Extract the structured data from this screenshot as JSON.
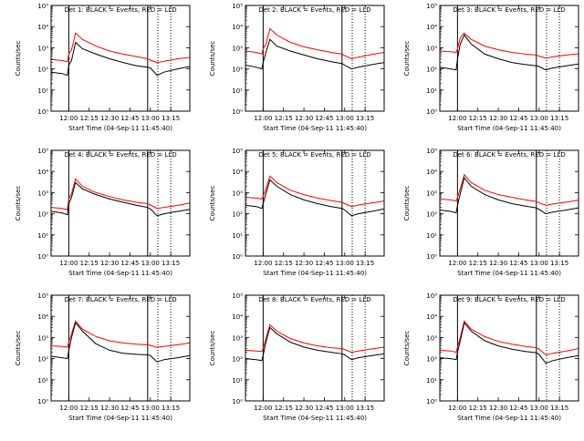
{
  "colors": {
    "background": "#ffffff",
    "axes": "#000000",
    "events": "#000000",
    "lld": "#ff0000"
  },
  "chart_data": [
    {
      "type": "line",
      "title": "Det 1: BLACK = Events, RED = LLD",
      "xlabel": "Start Time (04-Sep-11 11:45:40)",
      "ylabel": "Counts/sec",
      "yscale": "log",
      "ylim": [
        1,
        100000
      ],
      "ytick_labels": [
        "10⁰",
        "10¹",
        "10²",
        "10³",
        "10⁴",
        "10⁵"
      ],
      "xtick_labels": [
        "12:00",
        "12:15",
        "12:30",
        "12:45",
        "13:00",
        "13:15"
      ],
      "xticks_minutes": [
        0,
        15,
        30,
        45,
        60,
        75
      ],
      "xlim_minutes": [
        -13,
        89
      ],
      "vlines_solid_minutes": [
        0,
        58
      ],
      "vlines_dotted_minutes": [
        65.5,
        75
      ],
      "series": [
        {
          "name": "Events",
          "color": "#000000",
          "x": [
            -13,
            -5,
            -1,
            0,
            2,
            5,
            10,
            20,
            30,
            40,
            50,
            58,
            60,
            65,
            70,
            80,
            89
          ],
          "y": [
            70,
            60,
            50,
            150,
            250,
            1800,
            900,
            500,
            300,
            200,
            140,
            120,
            110,
            50,
            70,
            100,
            130
          ]
        },
        {
          "name": "LLD",
          "color": "#ff0000",
          "x": [
            -13,
            -5,
            -1,
            0,
            2,
            5,
            10,
            20,
            30,
            40,
            50,
            58,
            60,
            65,
            70,
            80,
            89
          ],
          "y": [
            280,
            250,
            220,
            500,
            800,
            5000,
            2500,
            1200,
            700,
            500,
            380,
            300,
            260,
            200,
            230,
            300,
            350
          ]
        }
      ]
    },
    {
      "type": "line",
      "title": "Det 2: BLACK = Events, RED = LLD",
      "xlabel": "Start Time (04-Sep-11 11:45:40)",
      "ylabel": "Counts/sec",
      "yscale": "log",
      "ylim": [
        1,
        100000
      ],
      "ytick_labels": [
        "10⁰",
        "10¹",
        "10²",
        "10³",
        "10⁴",
        "10⁵"
      ],
      "xtick_labels": [
        "12:00",
        "12:15",
        "12:30",
        "12:45",
        "13:00",
        "13:15"
      ],
      "xticks_minutes": [
        0,
        15,
        30,
        45,
        60,
        75
      ],
      "xlim_minutes": [
        -13,
        89
      ],
      "vlines_solid_minutes": [
        0,
        58
      ],
      "vlines_dotted_minutes": [
        65.5,
        75
      ],
      "series": [
        {
          "name": "Events",
          "color": "#000000",
          "x": [
            -13,
            -5,
            -1,
            0,
            2,
            5,
            10,
            20,
            30,
            40,
            50,
            58,
            60,
            65,
            70,
            80,
            89
          ],
          "y": [
            150,
            120,
            100,
            200,
            600,
            2500,
            1200,
            700,
            450,
            300,
            220,
            180,
            150,
            100,
            120,
            160,
            200
          ]
        },
        {
          "name": "LLD",
          "color": "#ff0000",
          "x": [
            -13,
            -5,
            -1,
            0,
            2,
            5,
            10,
            20,
            30,
            40,
            50,
            58,
            60,
            65,
            70,
            80,
            89
          ],
          "y": [
            700,
            600,
            500,
            900,
            1500,
            8000,
            4000,
            1800,
            1100,
            800,
            600,
            500,
            420,
            300,
            360,
            480,
            600
          ]
        }
      ]
    },
    {
      "type": "line",
      "title": "Det 3: BLACK = Events, RED = LLD",
      "xlabel": "Start Time (04-Sep-11 11:45:40)",
      "ylabel": "Counts/sec",
      "yscale": "log",
      "ylim": [
        1,
        100000
      ],
      "ytick_labels": [
        "10⁰",
        "10¹",
        "10²",
        "10³",
        "10⁴",
        "10⁵"
      ],
      "xtick_labels": [
        "12:00",
        "12:15",
        "12:30",
        "12:45",
        "13:00",
        "13:15"
      ],
      "xticks_minutes": [
        0,
        15,
        30,
        45,
        60,
        75
      ],
      "xlim_minutes": [
        -13,
        89
      ],
      "vlines_solid_minutes": [
        0,
        58
      ],
      "vlines_dotted_minutes": [
        65.5,
        75
      ],
      "series": [
        {
          "name": "Events",
          "color": "#000000",
          "x": [
            -13,
            -5,
            -1,
            0,
            2,
            5,
            10,
            20,
            30,
            40,
            50,
            58,
            60,
            65,
            70,
            80,
            89
          ],
          "y": [
            120,
            100,
            90,
            300,
            1500,
            4000,
            1500,
            500,
            300,
            200,
            160,
            140,
            130,
            90,
            110,
            140,
            170
          ]
        },
        {
          "name": "LLD",
          "color": "#ff0000",
          "x": [
            -13,
            -5,
            -1,
            0,
            2,
            5,
            10,
            20,
            30,
            40,
            50,
            58,
            60,
            65,
            70,
            80,
            89
          ],
          "y": [
            700,
            650,
            600,
            900,
            3000,
            5000,
            2500,
            1200,
            800,
            600,
            500,
            450,
            400,
            320,
            370,
            450,
            520
          ]
        }
      ]
    },
    {
      "type": "line",
      "title": "Det 4: BLACK = Events, RED = LLD",
      "xlabel": "Start Time (04-Sep-11 11:45:40)",
      "ylabel": "Counts/sec",
      "yscale": "log",
      "ylim": [
        1,
        100000
      ],
      "ytick_labels": [
        "10⁰",
        "10¹",
        "10²",
        "10³",
        "10⁴",
        "10⁵"
      ],
      "xtick_labels": [
        "12:00",
        "12:15",
        "12:30",
        "12:45",
        "13:00",
        "13:15"
      ],
      "xticks_minutes": [
        0,
        15,
        30,
        45,
        60,
        75
      ],
      "xlim_minutes": [
        -13,
        89
      ],
      "vlines_solid_minutes": [
        0,
        58
      ],
      "vlines_dotted_minutes": [
        65.5,
        75
      ],
      "series": [
        {
          "name": "Events",
          "color": "#000000",
          "x": [
            -13,
            -5,
            -1,
            0,
            2,
            5,
            10,
            20,
            30,
            40,
            50,
            58,
            60,
            65,
            70,
            80,
            89
          ],
          "y": [
            130,
            110,
            90,
            300,
            600,
            3000,
            1500,
            800,
            500,
            350,
            250,
            200,
            170,
            80,
            100,
            130,
            160
          ]
        },
        {
          "name": "LLD",
          "color": "#ff0000",
          "x": [
            -13,
            -5,
            -1,
            0,
            2,
            5,
            10,
            20,
            30,
            40,
            50,
            58,
            60,
            65,
            70,
            80,
            89
          ],
          "y": [
            200,
            180,
            160,
            500,
            900,
            4500,
            2000,
            1000,
            650,
            450,
            350,
            300,
            260,
            180,
            200,
            250,
            320
          ]
        }
      ]
    },
    {
      "type": "line",
      "title": "Det 5: BLACK = Events, RED = LLD",
      "xlabel": "Start Time (04-Sep-11 11:45:40)",
      "ylabel": "Counts/sec",
      "yscale": "log",
      "ylim": [
        1,
        100000
      ],
      "ytick_labels": [
        "10⁰",
        "10¹",
        "10²",
        "10³",
        "10⁴",
        "10⁵"
      ],
      "xtick_labels": [
        "12:00",
        "12:15",
        "12:30",
        "12:45",
        "13:00",
        "13:15"
      ],
      "xticks_minutes": [
        0,
        15,
        30,
        45,
        60,
        75
      ],
      "xlim_minutes": [
        -13,
        89
      ],
      "vlines_solid_minutes": [
        0,
        58
      ],
      "vlines_dotted_minutes": [
        65.5,
        75
      ],
      "series": [
        {
          "name": "Events",
          "color": "#000000",
          "x": [
            -13,
            -5,
            -1,
            0,
            2,
            5,
            10,
            20,
            30,
            40,
            50,
            58,
            60,
            65,
            70,
            80,
            89
          ],
          "y": [
            250,
            220,
            180,
            300,
            900,
            4000,
            2000,
            800,
            450,
            300,
            220,
            180,
            150,
            80,
            100,
            130,
            170
          ]
        },
        {
          "name": "LLD",
          "color": "#ff0000",
          "x": [
            -13,
            -5,
            -1,
            0,
            2,
            5,
            10,
            20,
            30,
            40,
            50,
            58,
            60,
            65,
            70,
            80,
            89
          ],
          "y": [
            600,
            550,
            500,
            700,
            1500,
            6000,
            3000,
            1300,
            800,
            550,
            420,
            350,
            300,
            220,
            260,
            330,
            400
          ]
        }
      ]
    },
    {
      "type": "line",
      "title": "Det 6: BLACK = Events, RED = LLD",
      "xlabel": "Start Time (04-Sep-11 11:45:40)",
      "ylabel": "Counts/sec",
      "yscale": "log",
      "ylim": [
        1,
        100000
      ],
      "ytick_labels": [
        "10⁰",
        "10¹",
        "10²",
        "10³",
        "10⁴",
        "10⁵"
      ],
      "xtick_labels": [
        "12:00",
        "12:15",
        "12:30",
        "12:45",
        "13:00",
        "13:15"
      ],
      "xticks_minutes": [
        0,
        15,
        30,
        45,
        60,
        75
      ],
      "xlim_minutes": [
        -13,
        89
      ],
      "vlines_solid_minutes": [
        0,
        58
      ],
      "vlines_dotted_minutes": [
        65.5,
        75
      ],
      "series": [
        {
          "name": "Events",
          "color": "#000000",
          "x": [
            -13,
            -5,
            -1,
            0,
            2,
            5,
            10,
            20,
            30,
            40,
            50,
            58,
            60,
            65,
            70,
            80,
            89
          ],
          "y": [
            150,
            130,
            110,
            250,
            900,
            5000,
            2000,
            800,
            450,
            300,
            230,
            190,
            160,
            100,
            120,
            150,
            190
          ]
        },
        {
          "name": "LLD",
          "color": "#ff0000",
          "x": [
            -13,
            -5,
            -1,
            0,
            2,
            5,
            10,
            20,
            30,
            40,
            50,
            58,
            60,
            65,
            70,
            80,
            89
          ],
          "y": [
            500,
            450,
            400,
            600,
            1500,
            7000,
            3000,
            1300,
            800,
            600,
            450,
            380,
            330,
            250,
            290,
            360,
            440
          ]
        }
      ]
    },
    {
      "type": "line",
      "title": "Det 7: BLACK = Events, RED = LLD",
      "xlabel": "Start Time (04-Sep-11 11:45:40)",
      "ylabel": "Counts/sec",
      "yscale": "log",
      "ylim": [
        1,
        100000
      ],
      "ytick_labels": [
        "10⁰",
        "10¹",
        "10²",
        "10³",
        "10⁴",
        "10⁵"
      ],
      "xtick_labels": [
        "12:00",
        "12:15",
        "12:30",
        "12:45",
        "13:00",
        "13:15"
      ],
      "xticks_minutes": [
        0,
        15,
        30,
        45,
        60,
        75
      ],
      "xlim_minutes": [
        -13,
        89
      ],
      "vlines_solid_minutes": [
        0,
        58
      ],
      "vlines_dotted_minutes": [
        65.5,
        75
      ],
      "series": [
        {
          "name": "Events",
          "color": "#000000",
          "x": [
            -13,
            -5,
            -1,
            0,
            2,
            5,
            10,
            20,
            30,
            40,
            50,
            58,
            60,
            65,
            70,
            80,
            89
          ],
          "y": [
            130,
            110,
            100,
            250,
            1000,
            5000,
            2000,
            500,
            250,
            180,
            160,
            150,
            140,
            70,
            90,
            110,
            140
          ]
        },
        {
          "name": "LLD",
          "color": "#ff0000",
          "x": [
            -13,
            -5,
            -1,
            0,
            2,
            5,
            10,
            20,
            30,
            40,
            50,
            58,
            60,
            65,
            70,
            80,
            89
          ],
          "y": [
            400,
            380,
            350,
            600,
            1500,
            6000,
            2500,
            1100,
            700,
            550,
            480,
            450,
            420,
            350,
            380,
            450,
            550
          ]
        }
      ]
    },
    {
      "type": "line",
      "title": "Det 8: BLACK = Events, RED = LLD",
      "xlabel": "Start Time (04-Sep-11 11:45:40)",
      "ylabel": "Counts/sec",
      "yscale": "log",
      "ylim": [
        1,
        100000
      ],
      "ytick_labels": [
        "10⁰",
        "10¹",
        "10²",
        "10³",
        "10⁴",
        "10⁵"
      ],
      "xtick_labels": [
        "12:00",
        "12:15",
        "12:30",
        "12:45",
        "13:00",
        "13:15"
      ],
      "xticks_minutes": [
        0,
        15,
        30,
        45,
        60,
        75
      ],
      "xlim_minutes": [
        -13,
        89
      ],
      "vlines_solid_minutes": [
        0,
        58
      ],
      "vlines_dotted_minutes": [
        65.5,
        75
      ],
      "series": [
        {
          "name": "Events",
          "color": "#000000",
          "x": [
            -13,
            -5,
            -1,
            0,
            2,
            5,
            10,
            20,
            30,
            40,
            50,
            58,
            60,
            65,
            70,
            80,
            89
          ],
          "y": [
            100,
            90,
            80,
            150,
            600,
            3000,
            1500,
            600,
            350,
            250,
            200,
            170,
            150,
            90,
            110,
            140,
            170
          ]
        },
        {
          "name": "LLD",
          "color": "#ff0000",
          "x": [
            -13,
            -5,
            -1,
            0,
            2,
            5,
            10,
            20,
            30,
            40,
            50,
            58,
            60,
            65,
            70,
            80,
            89
          ],
          "y": [
            250,
            230,
            220,
            300,
            900,
            4000,
            2000,
            900,
            550,
            400,
            330,
            300,
            270,
            200,
            230,
            290,
            350
          ]
        }
      ]
    },
    {
      "type": "line",
      "title": "Det 9: BLACK = Events, RED = LLD",
      "xlabel": "Start Time (04-Sep-11 11:45:40)",
      "ylabel": "Counts/sec",
      "yscale": "log",
      "ylim": [
        1,
        100000
      ],
      "ytick_labels": [
        "10⁰",
        "10¹",
        "10²",
        "10³",
        "10⁴",
        "10⁵"
      ],
      "xtick_labels": [
        "12:00",
        "12:15",
        "12:30",
        "12:45",
        "13:00",
        "13:15"
      ],
      "xticks_minutes": [
        0,
        15,
        30,
        45,
        60,
        75
      ],
      "xlim_minutes": [
        -13,
        89
      ],
      "vlines_solid_minutes": [
        0,
        58
      ],
      "vlines_dotted_minutes": [
        65.5,
        75
      ],
      "series": [
        {
          "name": "Events",
          "color": "#000000",
          "x": [
            -13,
            -5,
            -1,
            0,
            2,
            5,
            10,
            20,
            30,
            40,
            50,
            58,
            60,
            65,
            70,
            80,
            89
          ],
          "y": [
            110,
            100,
            90,
            200,
            700,
            5000,
            2000,
            700,
            400,
            280,
            220,
            190,
            160,
            60,
            80,
            110,
            140
          ]
        },
        {
          "name": "LLD",
          "color": "#ff0000",
          "x": [
            -13,
            -5,
            -1,
            0,
            2,
            5,
            10,
            20,
            30,
            40,
            50,
            58,
            60,
            65,
            70,
            80,
            89
          ],
          "y": [
            250,
            230,
            200,
            350,
            1000,
            6000,
            2500,
            1100,
            650,
            480,
            380,
            330,
            280,
            150,
            180,
            230,
            300
          ]
        }
      ]
    }
  ]
}
